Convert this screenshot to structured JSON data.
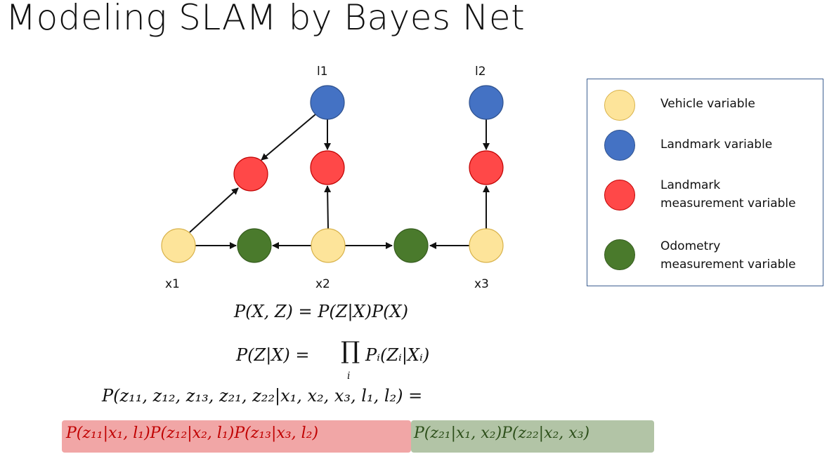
{
  "title": "Modeling SLAM by Bayes Net",
  "colors": {
    "vehicle": "#fde49a",
    "landmark": "#4472c4",
    "landmark_measurement": "#ff4848",
    "odometry_measurement": "#4a7a2c",
    "legend_border": "#3d5f91",
    "red_box": "#f1a6a6",
    "green_box": "#b2c4a6"
  },
  "nodes": {
    "l1": "l1",
    "l2": "l2",
    "x1": "x1",
    "x2": "x2",
    "x3": "x3"
  },
  "legend": {
    "vehicle": "Vehicle variable",
    "landmark": "Landmark variable",
    "landmark_measurement": "Landmark\nmeasurement variable",
    "odometry_measurement": "Odometry\nmeasurement variable"
  },
  "equations": {
    "eq1": "P(X, Z) = P(Z|X)P(X)",
    "eq2_left": "P(Z|X) = ",
    "eq2_product": "∏",
    "eq2_index": "i",
    "eq2_right": "Pᵢ(Zᵢ|Xᵢ)",
    "eq3": "P(z₁₁, z₁₂, z₁₃, z₂₁, z₂₂|x₁, x₂, x₃, l₁, l₂) =",
    "eq4_red": "P(z₁₁|x₁, l₁)P(z₁₂|x₂, l₁)P(z₁₃|x₃, l₂)",
    "eq4_green": "P(z₂₁|x₁, x₂)P(z₂₂|x₂, x₃)"
  }
}
